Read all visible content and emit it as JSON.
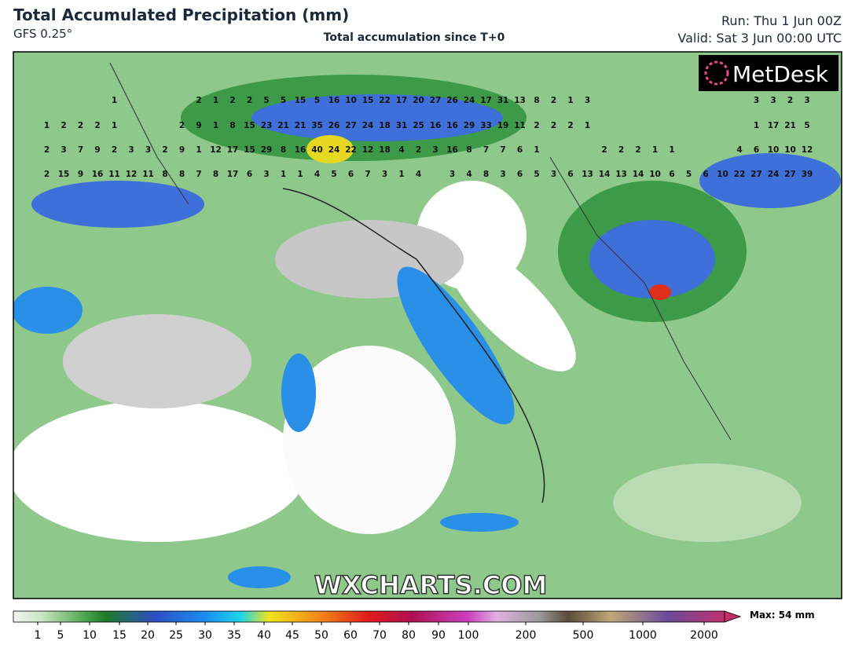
{
  "header": {
    "title": "Total Accumulated Precipitation (mm)",
    "model": "GFS 0.25°",
    "subtitle": "Total accumulation since T+0",
    "run": "Run: Thu 1 Jun 00Z",
    "valid": "Valid: Sat 3 Jun 00:00 UTC"
  },
  "logo": "MetDesk",
  "watermark": "WXCHARTS.COM",
  "map": {
    "rows": [
      [
        null,
        null,
        null,
        null,
        null,
        1,
        null,
        null,
        null,
        null,
        2,
        1,
        2,
        2,
        5,
        5,
        15,
        5,
        16,
        10,
        15,
        22,
        17,
        20,
        27,
        26,
        24,
        17,
        31,
        13,
        8,
        2,
        1,
        3,
        null,
        null,
        null,
        null,
        null,
        null,
        null,
        null,
        null,
        3,
        3,
        2,
        3
      ],
      [
        null,
        1,
        2,
        2,
        2,
        1,
        null,
        null,
        null,
        2,
        9,
        1,
        8,
        15,
        23,
        21,
        21,
        35,
        26,
        27,
        24,
        18,
        31,
        25,
        16,
        16,
        29,
        33,
        19,
        11,
        2,
        2,
        2,
        1,
        null,
        null,
        null,
        null,
        null,
        null,
        null,
        null,
        null,
        1,
        17,
        21,
        5
      ],
      [
        null,
        2,
        3,
        7,
        9,
        2,
        3,
        3,
        2,
        9,
        1,
        12,
        17,
        15,
        29,
        8,
        16,
        40,
        24,
        22,
        12,
        18,
        4,
        2,
        3,
        16,
        8,
        7,
        7,
        6,
        1,
        null,
        null,
        null,
        2,
        2,
        2,
        1,
        1,
        null,
        null,
        null,
        4,
        6,
        10,
        10,
        12
      ],
      [
        null,
        2,
        15,
        9,
        16,
        11,
        12,
        11,
        8,
        8,
        7,
        8,
        17,
        6,
        3,
        1,
        1,
        4,
        5,
        6,
        7,
        3,
        1,
        4,
        null,
        3,
        4,
        8,
        3,
        6,
        5,
        3,
        6,
        13,
        14,
        13,
        14,
        10,
        6,
        5,
        6,
        10,
        22,
        27,
        24,
        27,
        39
      ]
    ]
  },
  "legend": {
    "ticks": [
      1,
      5,
      10,
      15,
      20,
      25,
      30,
      35,
      40,
      45,
      50,
      60,
      70,
      80,
      90,
      100,
      200,
      500,
      1000,
      2000
    ],
    "max": "Max: 54 mm"
  }
}
